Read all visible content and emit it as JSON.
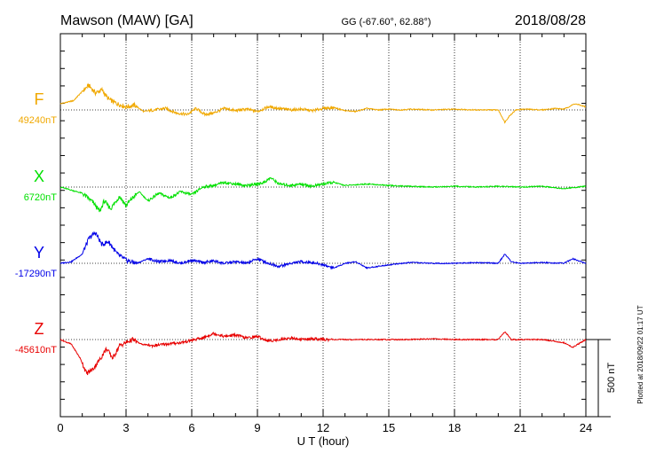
{
  "header": {
    "station": "Mawson (MAW)  [GA]",
    "coords": "GG (-67.60°,  62.88°)",
    "date": "2018/08/28"
  },
  "footer_note": "Plotted at 2018/09/22 01:17 UT",
  "chart_data": {
    "type": "line",
    "xlabel": "U T (hour)",
    "xlim": [
      0,
      24
    ],
    "xticks": [
      "0",
      "3",
      "6",
      "9",
      "12",
      "15",
      "18",
      "21",
      "24"
    ],
    "scale_bar_label": "500 nT",
    "scale_bar_nT": 500,
    "series": [
      {
        "name": "F",
        "baseline_label": "49240nT",
        "color": "#f0a800",
        "x": [
          0,
          0.6,
          1.0,
          1.3,
          1.6,
          1.9,
          2.2,
          2.6,
          3.0,
          3.4,
          3.8,
          4.3,
          4.8,
          5.3,
          5.8,
          6.2,
          6.6,
          7.0,
          7.5,
          8.0,
          8.5,
          9.0,
          9.5,
          10.0,
          10.5,
          11.0,
          11.5,
          12.0,
          12.5,
          13.0,
          13.5,
          14.0,
          14.5,
          15.0,
          15.5,
          16.0,
          17.0,
          18.0,
          19.0,
          20.0,
          20.3,
          20.5,
          20.8,
          21.2,
          22.0,
          22.6,
          23.0,
          23.5,
          24.0
        ],
        "y": [
          40,
          60,
          120,
          160,
          110,
          130,
          70,
          40,
          20,
          30,
          -10,
          0,
          10,
          -20,
          -30,
          10,
          -30,
          -20,
          10,
          -5,
          5,
          -10,
          20,
          10,
          0,
          5,
          -5,
          10,
          15,
          -5,
          -10,
          10,
          0,
          5,
          0,
          5,
          0,
          5,
          0,
          0,
          -80,
          -40,
          0,
          5,
          0,
          10,
          5,
          40,
          20
        ]
      },
      {
        "name": "X",
        "baseline_label": "6720nT",
        "color": "#00e000",
        "x": [
          0,
          0.5,
          1.0,
          1.5,
          1.8,
          2.0,
          2.3,
          2.7,
          3.0,
          3.3,
          3.6,
          4.0,
          4.5,
          5.0,
          5.5,
          6.0,
          6.5,
          7.0,
          7.5,
          8.0,
          8.5,
          9.0,
          9.3,
          9.6,
          10.0,
          10.5,
          11.0,
          11.5,
          12.0,
          12.5,
          13.0,
          14.0,
          15.0,
          16.0,
          17.0,
          18.0,
          19.0,
          20.0,
          21.0,
          22.0,
          23.0,
          24.0
        ],
        "y": [
          0,
          -20,
          -40,
          -100,
          -160,
          -90,
          -140,
          -60,
          -120,
          -70,
          -30,
          -90,
          -40,
          -70,
          -30,
          -50,
          0,
          10,
          30,
          20,
          10,
          20,
          30,
          60,
          20,
          10,
          20,
          5,
          20,
          30,
          10,
          20,
          10,
          5,
          0,
          5,
          0,
          5,
          0,
          5,
          -10,
          5
        ]
      },
      {
        "name": "Y",
        "baseline_label": "-17290nT",
        "color": "#0000e8",
        "x": [
          0,
          0.5,
          1.0,
          1.3,
          1.6,
          1.9,
          2.2,
          2.6,
          3.0,
          3.5,
          4.0,
          4.5,
          5.0,
          5.5,
          6.0,
          6.5,
          7.0,
          7.5,
          8.0,
          8.5,
          9.0,
          9.5,
          10.0,
          10.5,
          11.0,
          11.5,
          12.0,
          12.5,
          13.0,
          13.5,
          14.0,
          15.0,
          16.0,
          17.0,
          18.0,
          19.0,
          20.0,
          20.3,
          20.6,
          21.0,
          22.0,
          23.0,
          23.4,
          24.0
        ],
        "y": [
          0,
          10,
          60,
          160,
          200,
          120,
          140,
          60,
          20,
          0,
          30,
          10,
          20,
          0,
          20,
          5,
          15,
          0,
          10,
          0,
          30,
          0,
          -20,
          0,
          10,
          5,
          -10,
          -30,
          0,
          10,
          -30,
          -10,
          5,
          0,
          0,
          5,
          0,
          60,
          10,
          0,
          5,
          0,
          30,
          0
        ]
      },
      {
        "name": "Z",
        "baseline_label": "-45610nT",
        "color": "#e80000",
        "x": [
          0,
          0.5,
          0.9,
          1.2,
          1.5,
          1.8,
          2.1,
          2.4,
          2.7,
          3.0,
          3.3,
          3.7,
          4.2,
          4.8,
          5.5,
          6.0,
          6.5,
          7.0,
          7.5,
          8.0,
          8.5,
          9.0,
          9.5,
          10.0,
          10.5,
          11.0,
          11.5,
          12.0,
          13.0,
          14.0,
          15.0,
          16.0,
          17.0,
          18.0,
          19.0,
          20.0,
          20.3,
          20.6,
          21.0,
          22.0,
          22.5,
          23.0,
          23.4,
          24.0
        ],
        "y": [
          0,
          -30,
          -120,
          -220,
          -190,
          -130,
          -60,
          -120,
          -40,
          -20,
          0,
          -30,
          -40,
          -30,
          -20,
          -5,
          10,
          40,
          20,
          30,
          10,
          20,
          -10,
          0,
          10,
          0,
          5,
          0,
          0,
          0,
          0,
          0,
          5,
          0,
          0,
          0,
          50,
          0,
          0,
          0,
          -10,
          -20,
          -50,
          0
        ]
      }
    ]
  }
}
